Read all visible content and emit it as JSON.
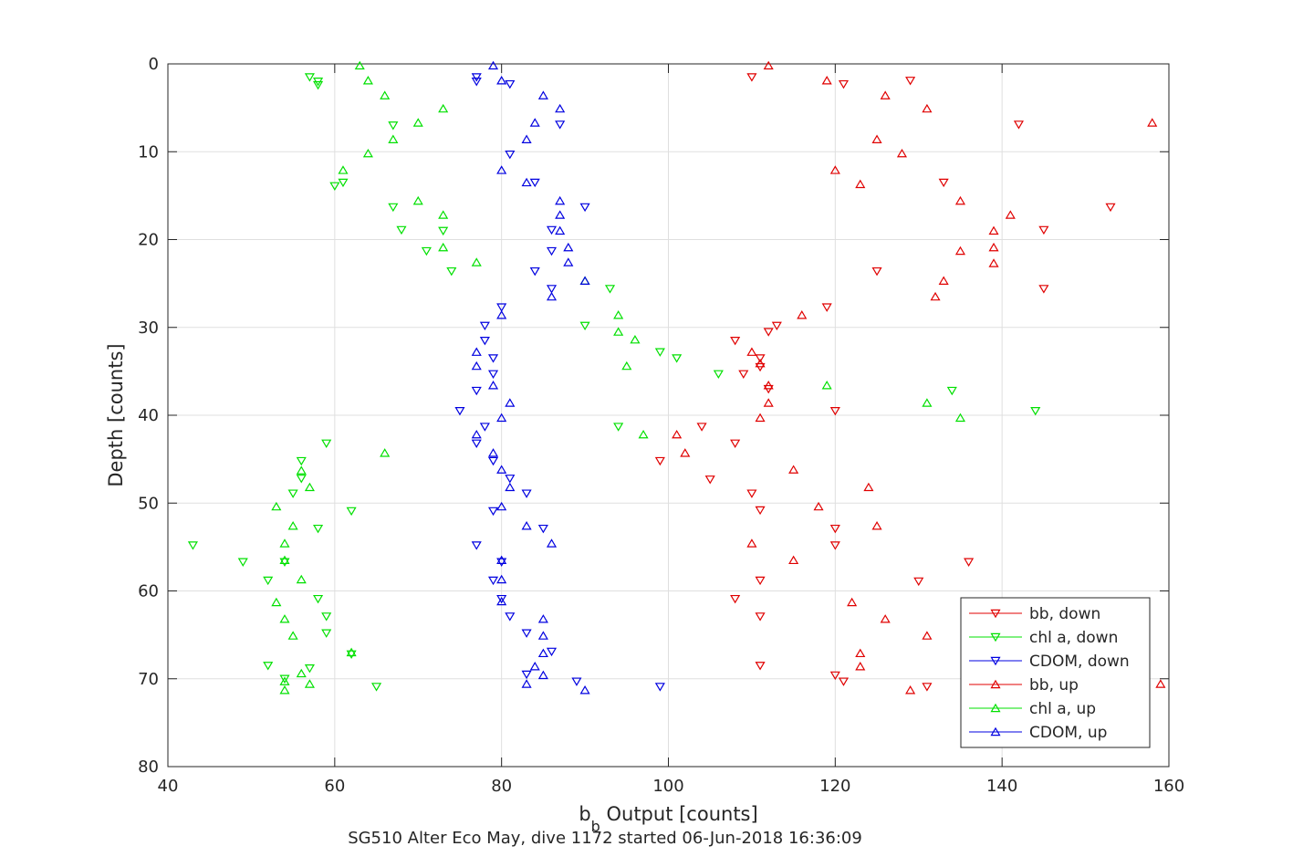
{
  "chart_data": {
    "type": "scatter",
    "xlabel_main": "b",
    "xlabel_sub": "b",
    "xlabel_rest": " Output [counts]",
    "ylabel": "Depth [counts]",
    "caption": "SG510 Alter Eco May, dive 1172 started 06-Jun-2018 16:36:09",
    "xlim": [
      40,
      160
    ],
    "ylim": [
      0,
      80
    ],
    "y_reversed": true,
    "grid": true,
    "xticks": [
      40,
      60,
      80,
      100,
      120,
      140,
      160
    ],
    "yticks": [
      0,
      10,
      20,
      30,
      40,
      50,
      60,
      70,
      80
    ],
    "legend_position": "bottom-right",
    "series": [
      {
        "name": "bb, down",
        "color": "#e00000",
        "marker": "triangle-down",
        "points": [
          [
            110,
            1.5
          ],
          [
            121,
            2.3
          ],
          [
            129,
            1.9
          ],
          [
            142,
            6.9
          ],
          [
            133,
            13.5
          ],
          [
            153,
            16.3
          ],
          [
            145,
            18.9
          ],
          [
            125,
            23.6
          ],
          [
            145,
            25.6
          ],
          [
            119,
            27.7
          ],
          [
            113,
            29.8
          ],
          [
            112,
            30.5
          ],
          [
            108,
            31.5
          ],
          [
            111,
            33.5
          ],
          [
            109,
            35.3
          ],
          [
            111,
            34.5
          ],
          [
            112,
            37.0
          ],
          [
            120,
            39.5
          ],
          [
            104,
            41.3
          ],
          [
            108,
            43.2
          ],
          [
            99,
            45.2
          ],
          [
            105,
            47.3
          ],
          [
            110,
            48.9
          ],
          [
            111,
            50.8
          ],
          [
            120,
            52.9
          ],
          [
            120,
            54.8
          ],
          [
            136,
            56.7
          ],
          [
            111,
            58.8
          ],
          [
            130,
            58.9
          ],
          [
            108,
            60.9
          ],
          [
            111,
            62.9
          ],
          [
            111,
            68.5
          ],
          [
            120,
            69.6
          ],
          [
            121,
            70.3
          ],
          [
            131,
            70.9
          ]
        ]
      },
      {
        "name": "chl a, down",
        "color": "#00e000",
        "marker": "triangle-down",
        "points": [
          [
            57,
            1.5
          ],
          [
            58,
            2.0
          ],
          [
            58,
            2.4
          ],
          [
            67,
            7.0
          ],
          [
            61,
            13.5
          ],
          [
            60,
            13.9
          ],
          [
            67,
            16.3
          ],
          [
            68,
            18.9
          ],
          [
            73,
            19.0
          ],
          [
            71,
            21.3
          ],
          [
            74,
            23.6
          ],
          [
            93,
            25.6
          ],
          [
            90,
            29.8
          ],
          [
            99,
            32.8
          ],
          [
            101,
            33.5
          ],
          [
            106,
            35.3
          ],
          [
            94,
            41.3
          ],
          [
            59,
            43.2
          ],
          [
            56,
            45.2
          ],
          [
            56,
            47.2
          ],
          [
            55,
            48.9
          ],
          [
            62,
            50.9
          ],
          [
            58,
            52.9
          ],
          [
            43,
            54.8
          ],
          [
            49,
            56.7
          ],
          [
            54,
            56.7
          ],
          [
            52,
            58.8
          ],
          [
            58,
            60.9
          ],
          [
            59,
            62.9
          ],
          [
            59,
            64.8
          ],
          [
            62,
            67.2
          ],
          [
            52,
            68.5
          ],
          [
            57,
            68.8
          ],
          [
            54,
            70.0
          ],
          [
            65,
            70.9
          ],
          [
            144,
            39.5
          ],
          [
            134,
            37.2
          ]
        ]
      },
      {
        "name": "CDOM, down",
        "color": "#0000e0",
        "marker": "triangle-down",
        "points": [
          [
            77,
            1.5
          ],
          [
            77,
            2.0
          ],
          [
            81,
            2.3
          ],
          [
            87,
            6.9
          ],
          [
            81,
            10.3
          ],
          [
            84,
            13.5
          ],
          [
            90,
            16.3
          ],
          [
            86,
            18.9
          ],
          [
            86,
            21.3
          ],
          [
            84,
            23.6
          ],
          [
            86,
            25.6
          ],
          [
            80,
            27.7
          ],
          [
            78,
            29.8
          ],
          [
            78,
            31.5
          ],
          [
            79,
            33.5
          ],
          [
            79,
            35.3
          ],
          [
            77,
            37.2
          ],
          [
            75,
            39.5
          ],
          [
            78,
            41.3
          ],
          [
            77,
            43.2
          ],
          [
            79,
            45.2
          ],
          [
            81,
            47.2
          ],
          [
            83,
            48.9
          ],
          [
            79,
            50.9
          ],
          [
            85,
            52.9
          ],
          [
            77,
            54.8
          ],
          [
            80,
            56.7
          ],
          [
            79,
            58.8
          ],
          [
            80,
            60.9
          ],
          [
            81,
            62.9
          ],
          [
            83,
            64.8
          ],
          [
            86,
            66.9
          ],
          [
            83,
            69.5
          ],
          [
            89,
            70.3
          ],
          [
            99,
            70.9
          ]
        ]
      },
      {
        "name": "bb, up",
        "color": "#e00000",
        "marker": "triangle-up",
        "points": [
          [
            112,
            0.2
          ],
          [
            119,
            1.9
          ],
          [
            126,
            3.6
          ],
          [
            131,
            5.1
          ],
          [
            158,
            6.7
          ],
          [
            125,
            8.6
          ],
          [
            128,
            10.2
          ],
          [
            120,
            12.1
          ],
          [
            123,
            13.7
          ],
          [
            135,
            15.6
          ],
          [
            141,
            17.2
          ],
          [
            139,
            19.0
          ],
          [
            139,
            20.9
          ],
          [
            135,
            21.3
          ],
          [
            139,
            22.7
          ],
          [
            133,
            24.7
          ],
          [
            132,
            26.5
          ],
          [
            116,
            28.6
          ],
          [
            110,
            32.8
          ],
          [
            111,
            34.1
          ],
          [
            112,
            36.6
          ],
          [
            112,
            38.6
          ],
          [
            111,
            40.3
          ],
          [
            101,
            42.2
          ],
          [
            102,
            44.3
          ],
          [
            115,
            46.2
          ],
          [
            124,
            48.2
          ],
          [
            118,
            50.4
          ],
          [
            125,
            52.6
          ],
          [
            110,
            54.6
          ],
          [
            115,
            56.5
          ],
          [
            122,
            61.3
          ],
          [
            126,
            63.2
          ],
          [
            131,
            65.1
          ],
          [
            123,
            67.1
          ],
          [
            123,
            68.6
          ],
          [
            129,
            71.3
          ],
          [
            159,
            70.6
          ]
        ]
      },
      {
        "name": "chl a, up",
        "color": "#00e000",
        "marker": "triangle-up",
        "points": [
          [
            63,
            0.2
          ],
          [
            64,
            1.9
          ],
          [
            66,
            3.6
          ],
          [
            73,
            5.1
          ],
          [
            70,
            6.7
          ],
          [
            67,
            8.6
          ],
          [
            64,
            10.2
          ],
          [
            61,
            12.1
          ],
          [
            70,
            15.6
          ],
          [
            73,
            17.2
          ],
          [
            73,
            20.9
          ],
          [
            77,
            22.6
          ],
          [
            90,
            24.7
          ],
          [
            94,
            28.6
          ],
          [
            94,
            30.5
          ],
          [
            96,
            31.4
          ],
          [
            95,
            34.4
          ],
          [
            119,
            36.6
          ],
          [
            131,
            38.6
          ],
          [
            135,
            40.3
          ],
          [
            97,
            42.2
          ],
          [
            66,
            44.3
          ],
          [
            56,
            46.3
          ],
          [
            57,
            48.2
          ],
          [
            53,
            50.4
          ],
          [
            55,
            52.6
          ],
          [
            54,
            54.6
          ],
          [
            54,
            56.5
          ],
          [
            56,
            58.7
          ],
          [
            53,
            61.3
          ],
          [
            54,
            63.2
          ],
          [
            55,
            65.1
          ],
          [
            62,
            67.0
          ],
          [
            56,
            69.4
          ],
          [
            54,
            70.3
          ],
          [
            57,
            70.6
          ],
          [
            54,
            71.3
          ]
        ]
      },
      {
        "name": "CDOM, up",
        "color": "#0000e0",
        "marker": "triangle-up",
        "points": [
          [
            79,
            0.2
          ],
          [
            80,
            1.9
          ],
          [
            85,
            3.6
          ],
          [
            87,
            5.1
          ],
          [
            84,
            6.7
          ],
          [
            83,
            8.6
          ],
          [
            80,
            12.1
          ],
          [
            83,
            13.5
          ],
          [
            87,
            15.6
          ],
          [
            87,
            17.2
          ],
          [
            87,
            19.0
          ],
          [
            88,
            20.9
          ],
          [
            88,
            22.6
          ],
          [
            90,
            24.7
          ],
          [
            86,
            26.5
          ],
          [
            80,
            28.6
          ],
          [
            77,
            32.8
          ],
          [
            77,
            34.4
          ],
          [
            79,
            36.6
          ],
          [
            81,
            38.6
          ],
          [
            80,
            40.3
          ],
          [
            77,
            42.2
          ],
          [
            79,
            44.3
          ],
          [
            80,
            46.2
          ],
          [
            81,
            48.2
          ],
          [
            80,
            50.4
          ],
          [
            83,
            52.6
          ],
          [
            86,
            54.6
          ],
          [
            80,
            56.5
          ],
          [
            80,
            58.7
          ],
          [
            80,
            61.2
          ],
          [
            85,
            63.2
          ],
          [
            85,
            65.1
          ],
          [
            85,
            67.1
          ],
          [
            84,
            68.6
          ],
          [
            85,
            69.6
          ],
          [
            83,
            70.6
          ],
          [
            90,
            71.3
          ]
        ]
      }
    ]
  }
}
